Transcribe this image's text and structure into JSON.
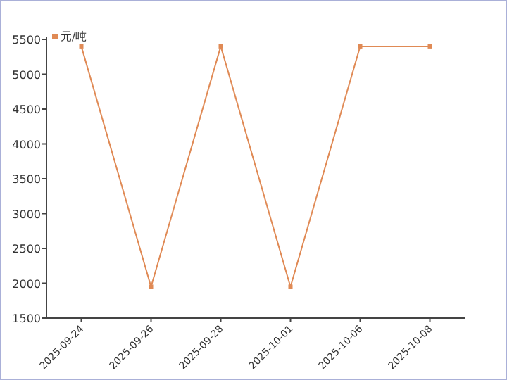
{
  "chart_data": {
    "type": "line",
    "categories": [
      "2025-09-24",
      "2025-09-26",
      "2025-09-28",
      "2025-10-01",
      "2025-10-06",
      "2025-10-08"
    ],
    "series": [
      {
        "name": "元/吨",
        "color": "#e08a55",
        "values": [
          5400,
          1950,
          5400,
          1950,
          5400,
          5400
        ]
      }
    ],
    "ylim": [
      1500,
      5500
    ],
    "yticks": [
      1500,
      2000,
      2500,
      3000,
      3500,
      4000,
      4500,
      5000,
      5500
    ],
    "legend": "top left",
    "marker": "square",
    "grid": false
  }
}
